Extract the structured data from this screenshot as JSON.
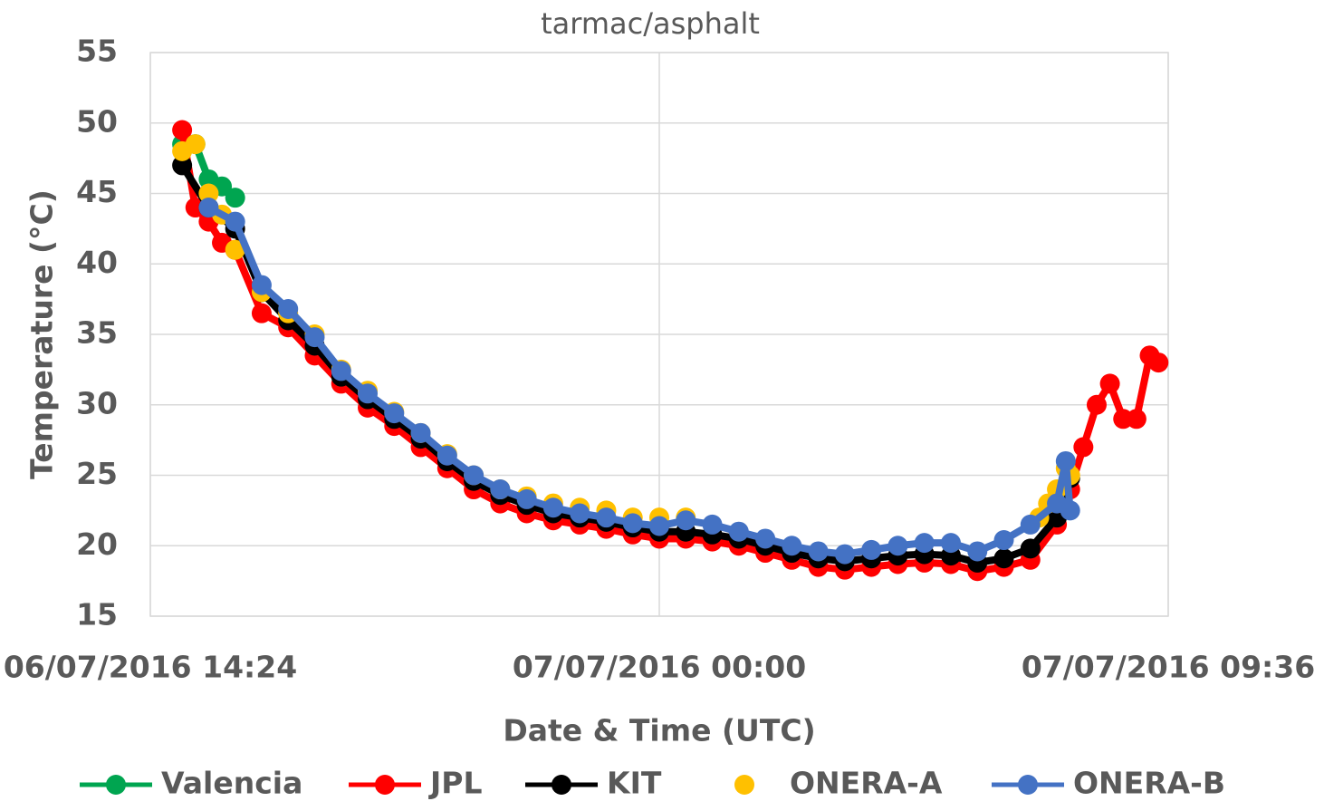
{
  "chart_data": {
    "type": "scatter",
    "title": "tarmac/asphalt",
    "x_label": "Date & Time (UTC)",
    "y_label": "Temperature (°C)",
    "xlim": [
      "2016-07-06 14:24",
      "2016-07-07 09:36"
    ],
    "xticks": [
      {
        "value": "2016-07-06 14:24",
        "label": "06/07/2016 14:24"
      },
      {
        "value": "2016-07-07 00:00",
        "label": "07/07/2016 00:00"
      },
      {
        "value": "2016-07-07 09:36",
        "label": "07/07/2016 09:36"
      }
    ],
    "ylim": [
      15,
      55
    ],
    "yticks": [
      15,
      20,
      25,
      30,
      35,
      40,
      45,
      50,
      55
    ],
    "grid": true,
    "series": [
      {
        "name": "Valencia",
        "color": "#00a550",
        "line": true,
        "x": [
          "2016-07-06 15:00",
          "2016-07-06 15:15",
          "2016-07-06 15:30",
          "2016-07-06 15:45",
          "2016-07-06 16:00"
        ],
        "values": [
          48.5,
          48.5,
          46,
          45.5,
          44.7
        ]
      },
      {
        "name": "JPL",
        "color": "#ff0000",
        "line": true,
        "x": [
          "2016-07-06 15:00",
          "2016-07-06 15:15",
          "2016-07-06 15:30",
          "2016-07-06 15:45",
          "2016-07-06 16:00",
          "2016-07-06 16:30",
          "2016-07-06 17:00",
          "2016-07-06 17:30",
          "2016-07-06 18:00",
          "2016-07-06 18:30",
          "2016-07-06 19:00",
          "2016-07-06 19:30",
          "2016-07-06 20:00",
          "2016-07-06 20:30",
          "2016-07-06 21:00",
          "2016-07-06 21:30",
          "2016-07-06 22:00",
          "2016-07-06 22:30",
          "2016-07-06 23:00",
          "2016-07-06 23:30",
          "2016-07-07 00:00",
          "2016-07-07 00:30",
          "2016-07-07 01:00",
          "2016-07-07 01:30",
          "2016-07-07 02:00",
          "2016-07-07 02:30",
          "2016-07-07 03:00",
          "2016-07-07 03:30",
          "2016-07-07 04:00",
          "2016-07-07 04:30",
          "2016-07-07 05:00",
          "2016-07-07 05:30",
          "2016-07-07 06:00",
          "2016-07-07 06:30",
          "2016-07-07 07:00",
          "2016-07-07 07:30",
          "2016-07-07 07:45",
          "2016-07-07 08:00",
          "2016-07-07 08:15",
          "2016-07-07 08:30",
          "2016-07-07 08:45",
          "2016-07-07 09:00",
          "2016-07-07 09:15",
          "2016-07-07 09:25"
        ],
        "values": [
          49.5,
          44,
          43,
          41.5,
          41,
          36.5,
          35.5,
          33.5,
          31.5,
          29.8,
          28.5,
          27,
          25.5,
          24,
          23,
          22.3,
          21.8,
          21.5,
          21.2,
          20.8,
          20.5,
          20.5,
          20.3,
          20,
          19.5,
          19,
          18.5,
          18.3,
          18.5,
          18.7,
          18.8,
          18.7,
          18.2,
          18.5,
          19,
          21.5,
          24,
          27,
          30,
          31.5,
          29,
          29,
          33.5,
          33
        ]
      },
      {
        "name": "KIT",
        "color": "#000000",
        "line": true,
        "x": [
          "2016-07-06 15:00",
          "2016-07-06 15:30",
          "2016-07-06 16:00",
          "2016-07-06 16:30",
          "2016-07-06 17:00",
          "2016-07-06 17:30",
          "2016-07-06 18:00",
          "2016-07-06 18:30",
          "2016-07-06 19:00",
          "2016-07-06 19:30",
          "2016-07-06 20:00",
          "2016-07-06 20:30",
          "2016-07-06 21:00",
          "2016-07-06 21:30",
          "2016-07-06 22:00",
          "2016-07-06 22:30",
          "2016-07-06 23:00",
          "2016-07-06 23:30",
          "2016-07-07 00:00",
          "2016-07-07 00:30",
          "2016-07-07 01:00",
          "2016-07-07 01:30",
          "2016-07-07 02:00",
          "2016-07-07 02:30",
          "2016-07-07 03:00",
          "2016-07-07 03:30",
          "2016-07-07 04:00",
          "2016-07-07 04:30",
          "2016-07-07 05:00",
          "2016-07-07 05:30",
          "2016-07-07 06:00",
          "2016-07-07 06:30",
          "2016-07-07 07:00",
          "2016-07-07 07:30",
          "2016-07-07 07:45"
        ],
        "values": [
          47,
          44,
          42.5,
          38,
          36,
          34.2,
          32,
          30.4,
          29,
          27.6,
          26,
          24.6,
          23.6,
          22.9,
          22.3,
          22,
          21.7,
          21.3,
          21,
          21,
          20.8,
          20.5,
          20,
          19.5,
          19.1,
          18.9,
          19.1,
          19.3,
          19.4,
          19.3,
          18.8,
          19.1,
          19.8,
          22,
          24.8
        ]
      },
      {
        "name": "ONERA-A",
        "color": "#ffc000",
        "line": false,
        "x": [
          "2016-07-06 15:00",
          "2016-07-06 15:15",
          "2016-07-06 15:30",
          "2016-07-06 15:45",
          "2016-07-06 16:00",
          "2016-07-06 16:30",
          "2016-07-06 17:00",
          "2016-07-06 17:30",
          "2016-07-06 18:00",
          "2016-07-06 18:30",
          "2016-07-06 19:00",
          "2016-07-06 19:30",
          "2016-07-06 20:00",
          "2016-07-06 20:30",
          "2016-07-06 21:00",
          "2016-07-06 21:30",
          "2016-07-06 22:00",
          "2016-07-06 22:30",
          "2016-07-06 23:00",
          "2016-07-06 23:30",
          "2016-07-07 00:00",
          "2016-07-07 00:30",
          "2016-07-07 07:10",
          "2016-07-07 07:20",
          "2016-07-07 07:30",
          "2016-07-07 07:40",
          "2016-07-07 07:45"
        ],
        "values": [
          48,
          48.5,
          45,
          43.5,
          41,
          38,
          36.5,
          35,
          32.5,
          31,
          29.5,
          28,
          26.5,
          25,
          24,
          23.5,
          23,
          22.7,
          22.5,
          22,
          22,
          22,
          22,
          23,
          24,
          25.5,
          25
        ]
      },
      {
        "name": "ONERA-B",
        "color": "#4472c4",
        "line": true,
        "x": [
          "2016-07-06 15:30",
          "2016-07-06 16:00",
          "2016-07-06 16:30",
          "2016-07-06 17:00",
          "2016-07-06 17:30",
          "2016-07-06 18:00",
          "2016-07-06 18:30",
          "2016-07-06 19:00",
          "2016-07-06 19:30",
          "2016-07-06 20:00",
          "2016-07-06 20:30",
          "2016-07-06 21:00",
          "2016-07-06 21:30",
          "2016-07-06 22:00",
          "2016-07-06 22:30",
          "2016-07-06 23:00",
          "2016-07-06 23:30",
          "2016-07-07 00:00",
          "2016-07-07 00:30",
          "2016-07-07 01:00",
          "2016-07-07 01:30",
          "2016-07-07 02:00",
          "2016-07-07 02:30",
          "2016-07-07 03:00",
          "2016-07-07 03:30",
          "2016-07-07 04:00",
          "2016-07-07 04:30",
          "2016-07-07 05:00",
          "2016-07-07 05:30",
          "2016-07-07 06:00",
          "2016-07-07 06:30",
          "2016-07-07 07:00",
          "2016-07-07 07:30",
          "2016-07-07 07:40",
          "2016-07-07 07:45"
        ],
        "values": [
          44,
          43,
          38.5,
          36.8,
          34.8,
          32.4,
          30.8,
          29.4,
          28,
          26.4,
          25,
          24,
          23.3,
          22.7,
          22.3,
          22,
          21.6,
          21.4,
          21.8,
          21.5,
          21,
          20.5,
          20,
          19.6,
          19.4,
          19.7,
          20,
          20.2,
          20.2,
          19.6,
          20.4,
          21.5,
          23,
          26,
          22.5
        ]
      }
    ]
  }
}
